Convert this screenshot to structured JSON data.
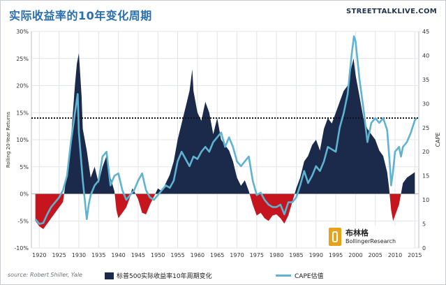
{
  "header": {
    "title": "实际收益率的10年变化周期",
    "brand": "STREETTALKLIVE.COM"
  },
  "footer": {
    "source": "source: Robert Shiller, Yale"
  },
  "watermark": {
    "name_cn": "布林格",
    "name_en": "BollingerResearch"
  },
  "colors": {
    "positive_bar": "#1b2a4a",
    "negative_bar": "#c51620",
    "cape_line": "#5eb3d1",
    "title": "#2a6fb0"
  },
  "chart_data": {
    "type": "area",
    "title": "实际收益率的10年变化周期",
    "xlabel": "",
    "ylabel": "Rolling 20-Year Returns",
    "y2label": "CAPE",
    "xlim": [
      1918,
      2016
    ],
    "ylim": [
      -10,
      30
    ],
    "y2lim": [
      0,
      45
    ],
    "x_ticks": [
      1920,
      1925,
      1930,
      1935,
      1940,
      1945,
      1950,
      1955,
      1960,
      1965,
      1970,
      1975,
      1980,
      1985,
      1990,
      1995,
      2000,
      2005,
      2010,
      2015
    ],
    "y_ticks": [
      "-10%",
      "-5%",
      "0%",
      "5%",
      "10%",
      "15%",
      "20%",
      "25%",
      "30%"
    ],
    "y2_ticks": [
      0,
      5,
      10,
      15,
      20,
      25,
      30,
      35,
      40,
      45
    ],
    "grid": true,
    "reference_line": {
      "axis": "left",
      "value": 14,
      "style": "dotted"
    },
    "legend_position": "bottom",
    "series": [
      {
        "name": "标普500实际收益率10年周期变化",
        "axis": "left",
        "type": "area",
        "points": [
          [
            1919,
            -5
          ],
          [
            1920,
            -6
          ],
          [
            1921,
            -6.5
          ],
          [
            1922,
            -5.5
          ],
          [
            1923,
            -4.5
          ],
          [
            1924,
            -3.5
          ],
          [
            1925,
            -2.5
          ],
          [
            1926,
            -1.5
          ],
          [
            1927,
            4
          ],
          [
            1928,
            10
          ],
          [
            1929,
            20
          ],
          [
            1929.5,
            24
          ],
          [
            1930,
            26
          ],
          [
            1930.7,
            18
          ],
          [
            1931,
            12
          ],
          [
            1932,
            8
          ],
          [
            1933,
            3
          ],
          [
            1934,
            5
          ],
          [
            1935,
            2
          ],
          [
            1936,
            5
          ],
          [
            1937,
            7
          ],
          [
            1938,
            3
          ],
          [
            1939,
            0.5
          ],
          [
            1939.5,
            -3
          ],
          [
            1940,
            -4.5
          ],
          [
            1941,
            -3.5
          ],
          [
            1942,
            -2.5
          ],
          [
            1943,
            -0.5
          ],
          [
            1943.5,
            1
          ],
          [
            1944,
            0.5
          ],
          [
            1945,
            -1
          ],
          [
            1946,
            -3.5
          ],
          [
            1947,
            -3.8
          ],
          [
            1948,
            -2
          ],
          [
            1949,
            -0.5
          ],
          [
            1950,
            1
          ],
          [
            1951,
            0.5
          ],
          [
            1952,
            2
          ],
          [
            1953,
            3.5
          ],
          [
            1954,
            6
          ],
          [
            1955,
            10
          ],
          [
            1956,
            13
          ],
          [
            1957,
            16
          ],
          [
            1958,
            19
          ],
          [
            1958.7,
            23
          ],
          [
            1959,
            19
          ],
          [
            1960,
            15
          ],
          [
            1961,
            13.5
          ],
          [
            1962,
            17
          ],
          [
            1963,
            15
          ],
          [
            1964,
            11
          ],
          [
            1965,
            14
          ],
          [
            1966,
            10
          ],
          [
            1967,
            9
          ],
          [
            1968,
            8
          ],
          [
            1969,
            6
          ],
          [
            1970,
            3
          ],
          [
            1971,
            1.5
          ],
          [
            1972,
            2.5
          ],
          [
            1973,
            0.5
          ],
          [
            1974,
            -2
          ],
          [
            1975,
            -4
          ],
          [
            1976,
            -3.5
          ],
          [
            1977,
            -4.5
          ],
          [
            1978,
            -5
          ],
          [
            1979,
            -4
          ],
          [
            1980,
            -3.8
          ],
          [
            1981,
            -4.5
          ],
          [
            1982,
            -5.5
          ],
          [
            1983,
            -4
          ],
          [
            1984,
            -1.5
          ],
          [
            1985,
            1
          ],
          [
            1986,
            3
          ],
          [
            1987,
            6
          ],
          [
            1988,
            7
          ],
          [
            1989,
            9
          ],
          [
            1990,
            10
          ],
          [
            1991,
            8
          ],
          [
            1992,
            12
          ],
          [
            1993,
            14
          ],
          [
            1994,
            13
          ],
          [
            1995,
            15
          ],
          [
            1996,
            17
          ],
          [
            1997,
            19
          ],
          [
            1998,
            20
          ],
          [
            1999,
            23.5
          ],
          [
            1999.5,
            25
          ],
          [
            2000,
            22
          ],
          [
            2001,
            18
          ],
          [
            2002,
            14
          ],
          [
            2003,
            12
          ],
          [
            2004,
            11
          ],
          [
            2005,
            10
          ],
          [
            2006,
            8
          ],
          [
            2007,
            7
          ],
          [
            2008,
            4
          ],
          [
            2008.5,
            1
          ],
          [
            2009,
            -3
          ],
          [
            2009.5,
            -5
          ],
          [
            2010,
            -4
          ],
          [
            2011,
            -2
          ],
          [
            2011.5,
            0
          ],
          [
            2012,
            2
          ],
          [
            2013,
            3
          ],
          [
            2014,
            3.5
          ],
          [
            2015,
            4
          ]
        ]
      },
      {
        "name": "CAPE估值",
        "axis": "right",
        "type": "line",
        "points": [
          [
            1919,
            6
          ],
          [
            1920,
            5
          ],
          [
            1921,
            5.2
          ],
          [
            1922,
            7
          ],
          [
            1923,
            8.5
          ],
          [
            1924,
            9.5
          ],
          [
            1925,
            10.5
          ],
          [
            1926,
            12
          ],
          [
            1927,
            15
          ],
          [
            1928,
            22
          ],
          [
            1929,
            28
          ],
          [
            1929.7,
            32
          ],
          [
            1930,
            24
          ],
          [
            1931,
            14
          ],
          [
            1932,
            6
          ],
          [
            1932.5,
            9
          ],
          [
            1933,
            11
          ],
          [
            1934,
            13
          ],
          [
            1935,
            14
          ],
          [
            1936,
            19
          ],
          [
            1937,
            20
          ],
          [
            1938,
            13
          ],
          [
            1939,
            15
          ],
          [
            1940,
            15.5
          ],
          [
            1941,
            12
          ],
          [
            1942,
            10
          ],
          [
            1943,
            11
          ],
          [
            1944,
            12
          ],
          [
            1945,
            14
          ],
          [
            1946,
            15.5
          ],
          [
            1947,
            12
          ],
          [
            1948,
            10.5
          ],
          [
            1949,
            10
          ],
          [
            1950,
            11
          ],
          [
            1951,
            12
          ],
          [
            1952,
            13
          ],
          [
            1953,
            12.5
          ],
          [
            1954,
            14
          ],
          [
            1955,
            18
          ],
          [
            1956,
            20
          ],
          [
            1957,
            18.5
          ],
          [
            1958,
            17
          ],
          [
            1959,
            19
          ],
          [
            1960,
            18.5
          ],
          [
            1961,
            20
          ],
          [
            1962,
            21
          ],
          [
            1963,
            20
          ],
          [
            1964,
            22
          ],
          [
            1965,
            23
          ],
          [
            1966,
            24
          ],
          [
            1967,
            21
          ],
          [
            1968,
            23
          ],
          [
            1969,
            21
          ],
          [
            1970,
            18
          ],
          [
            1971,
            17
          ],
          [
            1972,
            18
          ],
          [
            1973,
            19
          ],
          [
            1974,
            14
          ],
          [
            1975,
            11
          ],
          [
            1976,
            11.5
          ],
          [
            1977,
            10
          ],
          [
            1978,
            9
          ],
          [
            1979,
            8.5
          ],
          [
            1980,
            8.5
          ],
          [
            1981,
            9
          ],
          [
            1982,
            7
          ],
          [
            1983,
            9.5
          ],
          [
            1984,
            9.5
          ],
          [
            1985,
            10.5
          ],
          [
            1986,
            13
          ],
          [
            1987,
            16
          ],
          [
            1988,
            13.5
          ],
          [
            1989,
            15
          ],
          [
            1990,
            17
          ],
          [
            1991,
            16
          ],
          [
            1992,
            18
          ],
          [
            1993,
            21
          ],
          [
            1994,
            20.5
          ],
          [
            1995,
            20
          ],
          [
            1996,
            25
          ],
          [
            1997,
            28
          ],
          [
            1998,
            32
          ],
          [
            1999,
            40
          ],
          [
            1999.6,
            44
          ],
          [
            2000,
            43
          ],
          [
            2001,
            35
          ],
          [
            2002,
            29
          ],
          [
            2003,
            22
          ],
          [
            2004,
            26
          ],
          [
            2005,
            27
          ],
          [
            2006,
            26
          ],
          [
            2007,
            27
          ],
          [
            2008,
            24.5
          ],
          [
            2008.7,
            17
          ],
          [
            2009,
            13
          ],
          [
            2009.5,
            16
          ],
          [
            2010,
            20
          ],
          [
            2011,
            21
          ],
          [
            2011.5,
            19
          ],
          [
            2012,
            21
          ],
          [
            2013,
            22
          ],
          [
            2014,
            24
          ],
          [
            2015,
            26.5
          ],
          [
            2015.4,
            27
          ]
        ]
      }
    ]
  }
}
